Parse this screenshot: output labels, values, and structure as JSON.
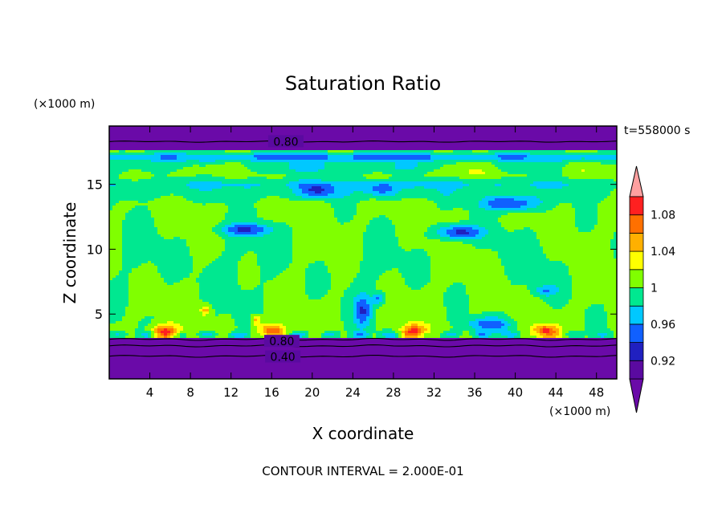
{
  "chart_data": {
    "type": "heatmap",
    "subtype": "filled-contour",
    "title": "Saturation Ratio",
    "xlabel": "X coordinate",
    "ylabel": "Z coordinate",
    "x_units": "(×1000 m)",
    "y_units": "(×1000 m)",
    "time_label": "t=558000 s",
    "footer": "CONTOUR INTERVAL = 2.000E-01",
    "xlim": [
      0,
      50
    ],
    "ylim": [
      0,
      19.5
    ],
    "x_ticks": [
      4,
      8,
      12,
      16,
      20,
      24,
      28,
      32,
      36,
      40,
      44,
      48
    ],
    "y_ticks": [
      5,
      10,
      15
    ],
    "colorbar": {
      "tick_labels": [
        "0.92",
        "0.96",
        "1",
        "1.04",
        "1.08"
      ],
      "tick_values": [
        0.92,
        0.96,
        1.0,
        1.04,
        1.08
      ],
      "levels": [
        0.9,
        0.92,
        0.94,
        0.96,
        0.98,
        1.0,
        1.02,
        1.04,
        1.06,
        1.08,
        1.1
      ],
      "colors": [
        "#5a0aa0",
        "#2020c0",
        "#1060ff",
        "#00c8ff",
        "#00e890",
        "#80ff00",
        "#ffff00",
        "#ffb000",
        "#ff7000",
        "#ff2020"
      ],
      "under_color": "#6a0aa8",
      "over_color": "#ffa0a0"
    },
    "contour_labels": [
      {
        "text": "0.80",
        "x": 17.4,
        "z": 18.3
      },
      {
        "text": "0.80",
        "x": 17.0,
        "z": 2.9
      },
      {
        "text": "0.40",
        "x": 17.1,
        "z": 1.7
      }
    ]
  }
}
